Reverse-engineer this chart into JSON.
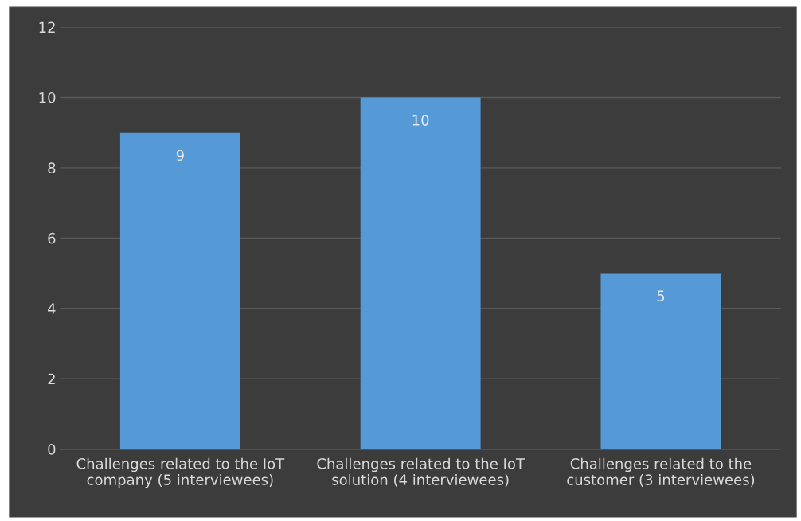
{
  "chart_data": {
    "type": "bar",
    "categories": [
      "Challenges related to the IoT\ncompany (5 interviewees)",
      "Challenges related to the IoT\nsolution (4 interviewees)",
      "Challenges related to the\ncustomer (3 interviewees)"
    ],
    "values": [
      9,
      10,
      5
    ],
    "color": "#5599d6",
    "ylim": [
      0,
      12
    ],
    "yticks": [
      0,
      2,
      4,
      6,
      8,
      10,
      12
    ],
    "grid": "y",
    "data_labels": true
  }
}
